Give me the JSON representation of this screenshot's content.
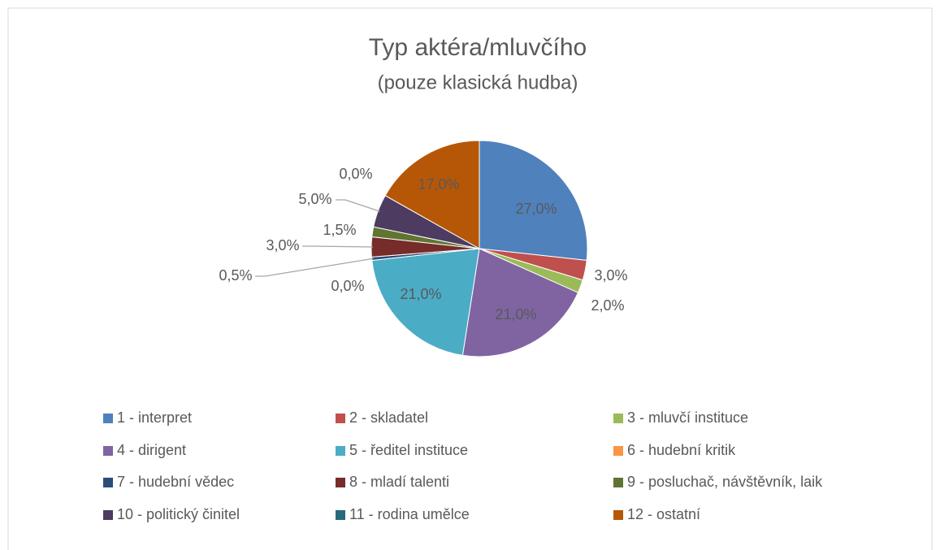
{
  "chart_data": {
    "type": "pie",
    "title": "Typ aktéra/mluvčího",
    "subtitle": "(pouze klasická hudba)",
    "categories": [
      "1 - interpret",
      "2 - skladatel",
      "3 - mluvčí instituce",
      "4 - dirigent",
      "5 - ředitel instituce",
      "6 - hudební kritik",
      "7 - hudební vědec",
      "8 - mladí talenti",
      "9 - posluchač, návštěvník, laik",
      "10 - politický činitel",
      "11 - rodina umělce",
      "12 - ostatní"
    ],
    "values": [
      27,
      3,
      2,
      21,
      21,
      0,
      0.5,
      3,
      1.5,
      5,
      0,
      17
    ],
    "value_labels": [
      "27,0%",
      "3,0%",
      "2,0%",
      "21,0%",
      "21,0%",
      "0,0%",
      "0,5%",
      "3,0%",
      "1,5%",
      "5,0%",
      "0,0%",
      "17,0%"
    ],
    "colors": [
      "#4f81bd",
      "#c0504d",
      "#9bbb59",
      "#8064a2",
      "#4bacc6",
      "#f79646",
      "#2c4d75",
      "#772c2a",
      "#5f7530",
      "#4d3b62",
      "#276a7c",
      "#b65708"
    ],
    "legend": "bottom"
  }
}
